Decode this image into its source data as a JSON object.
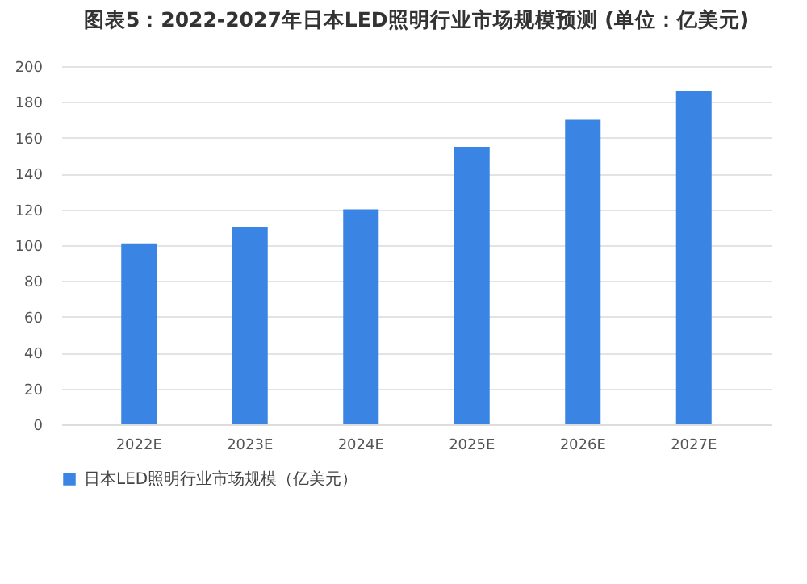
{
  "chart_data": {
    "type": "bar",
    "title": "图表5：2022-2027年日本LED照明行业市场规模预测 (单位：亿美元)",
    "categories": [
      "2022E",
      "2023E",
      "2024E",
      "2025E",
      "2026E",
      "2027E"
    ],
    "series": [
      {
        "name": "日本LED照明行业市场规模（亿美元）",
        "color": "#3a84e3",
        "values": [
          101,
          110,
          120,
          155,
          170,
          186
        ]
      }
    ],
    "ylim": [
      0,
      200
    ],
    "yticks": [
      0,
      20,
      40,
      60,
      80,
      100,
      120,
      140,
      160,
      180,
      200
    ],
    "grid": "y",
    "legend": "bottom"
  }
}
